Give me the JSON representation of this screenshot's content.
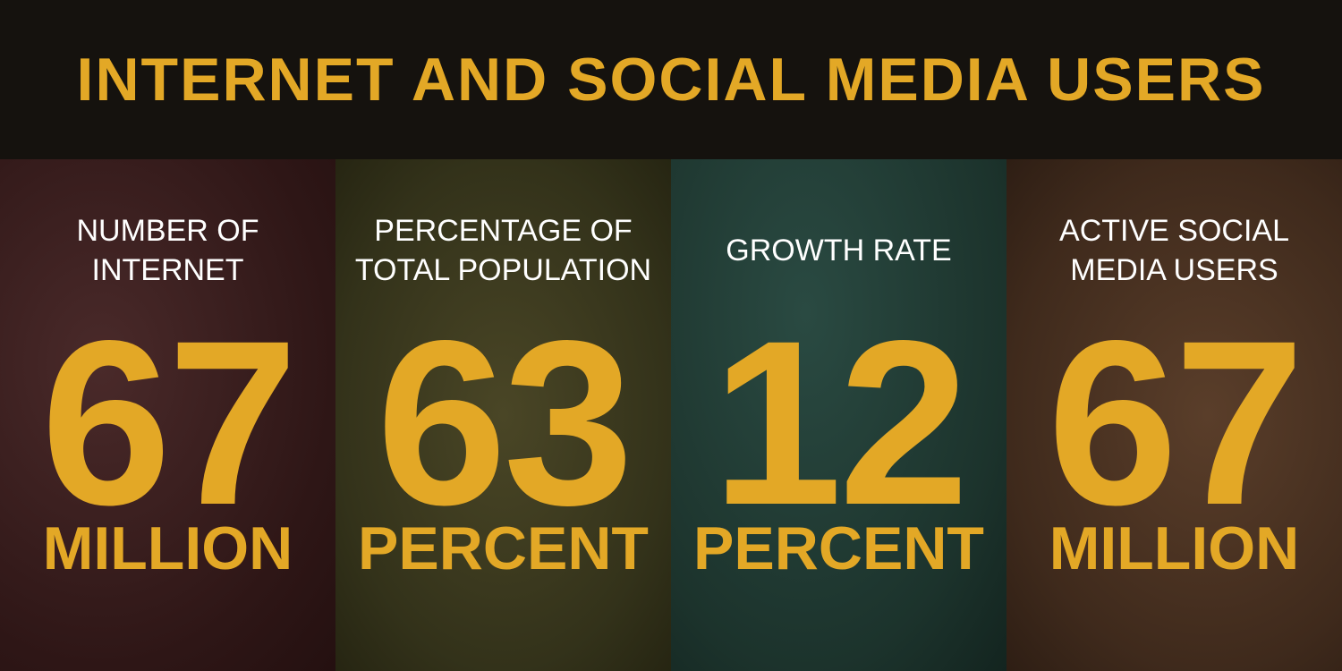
{
  "header": {
    "title": "INTERNET AND SOCIAL MEDIA USERS"
  },
  "panels": [
    {
      "label": [
        "NUMBER OF",
        "INTERNET"
      ],
      "value": 67,
      "unit": "MILLION"
    },
    {
      "label": [
        "PERCENTAGE OF",
        "TOTAL POPULATION"
      ],
      "value": 63,
      "unit": "PERCENT"
    },
    {
      "label": [
        "GROWTH RATE"
      ],
      "value": 12,
      "unit": "PERCENT"
    },
    {
      "label": [
        "ACTIVE SOCIAL",
        "MEDIA USERS"
      ],
      "value": 67,
      "unit": "MILLION"
    }
  ]
}
